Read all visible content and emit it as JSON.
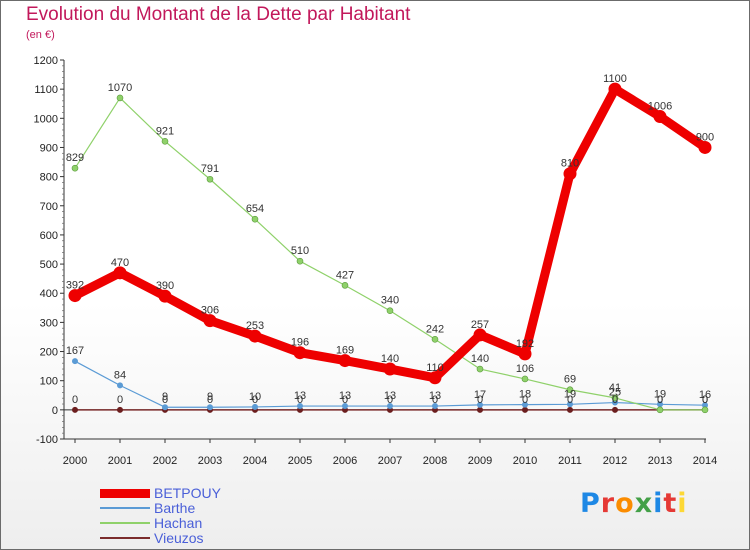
{
  "title": "Evolution du Montant de la Dette par Habitant",
  "unit": "(en €)",
  "logo": {
    "text": "Proxiti",
    "colors": [
      "#1e88e5",
      "#e53935",
      "#fb8c00",
      "#43a047",
      "#1e88e5",
      "#e53935",
      "#fdd835"
    ]
  },
  "chart_data": {
    "type": "line",
    "x": [
      "2000",
      "2001",
      "2002",
      "2003",
      "2004",
      "2005",
      "2006",
      "2007",
      "2008",
      "2009",
      "2010",
      "2011",
      "2012",
      "2013",
      "2014"
    ],
    "ylim": [
      -100,
      1200
    ],
    "yticks": [
      -100,
      0,
      100,
      200,
      300,
      400,
      500,
      600,
      700,
      800,
      900,
      1000,
      1100,
      1200
    ],
    "grid": false,
    "legend_position": "bottom-left",
    "series": [
      {
        "name": "BETPOUY",
        "color": "#ee0000",
        "values": [
          392,
          470,
          390,
          306,
          253,
          196,
          169,
          140,
          110,
          257,
          192,
          810,
          1100,
          1006,
          900
        ]
      },
      {
        "name": "Barthe",
        "color": "#5b9bd5",
        "values": [
          167,
          84,
          9,
          9,
          10,
          13,
          13,
          13,
          13,
          17,
          18,
          19,
          25,
          19,
          16
        ]
      },
      {
        "name": "Hachan",
        "color": "#8fd16a",
        "values": [
          829,
          1070,
          921,
          791,
          654,
          510,
          427,
          340,
          242,
          140,
          106,
          69,
          41,
          0,
          0
        ]
      },
      {
        "name": "Vieuzos",
        "color": "#7b2c2c",
        "values": [
          0,
          0,
          0,
          0,
          0,
          0,
          0,
          0,
          0,
          0,
          0,
          0,
          0,
          0,
          0
        ]
      }
    ]
  }
}
